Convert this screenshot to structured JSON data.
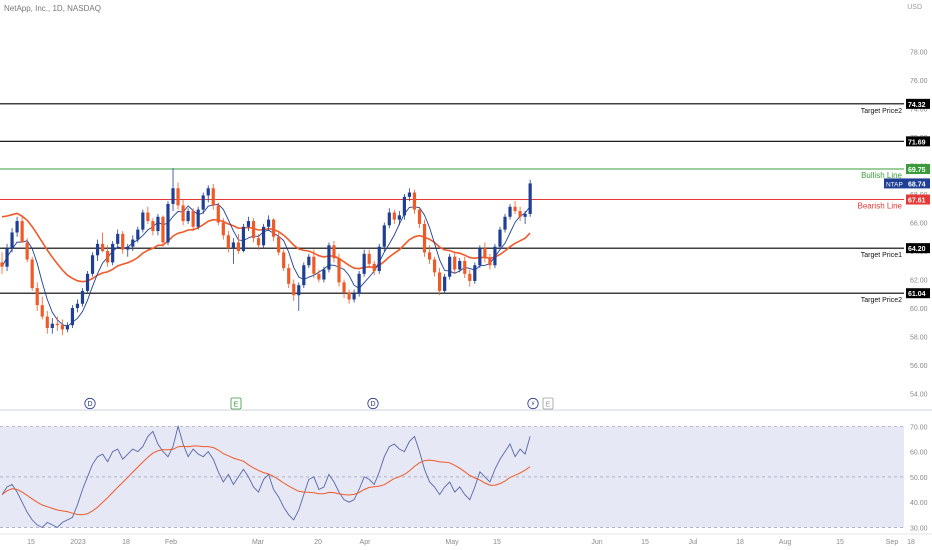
{
  "header": {
    "title": "NetApp, Inc., 1D, NASDAQ",
    "currency": "USD"
  },
  "colors": {
    "up": "#1e3f94",
    "down": "#f05a28",
    "ma_long": "#f05a28",
    "ma_short": "#1e3f94",
    "bullish": "#3a9b3a",
    "bearish": "#e53935",
    "level": "#000000",
    "rsi_line": "#5866a8",
    "rsi_ma": "#f05a28",
    "rsi_band": "#e6e8f5"
  },
  "chart_data": [
    {
      "type": "candlestick",
      "y_axis": {
        "ticks": [
          54,
          56,
          58,
          60,
          62,
          64,
          66,
          68,
          70,
          72,
          74,
          76,
          78
        ],
        "tick_labels": [
          "54.00",
          "56.00",
          "58.00",
          "60.00",
          "62.00",
          "64.00",
          "66.00",
          "68.00",
          "70.00",
          "72.00",
          "74.00",
          "76.00",
          "78.00"
        ],
        "range": [
          53.2,
          80.2
        ]
      },
      "x_axis": {
        "tick_labels": [
          "15",
          "2023",
          "18",
          "Feb",
          "Mar",
          "20",
          "Apr",
          "May",
          "15",
          "Jun",
          "15",
          "Jul",
          "18",
          "Aug",
          "15",
          "Sep",
          "18"
        ]
      },
      "levels": [
        {
          "name": "Target Price2",
          "value": 74.32,
          "value_label": "74.32",
          "kind": "level"
        },
        {
          "name": "",
          "value": 71.69,
          "value_label": "71.69",
          "kind": "level"
        },
        {
          "name": "Bullish Line",
          "value": 69.75,
          "value_label": "69.75",
          "kind": "bullish"
        },
        {
          "name": "Bearish Line",
          "value": 67.61,
          "value_label": "67.61",
          "kind": "bearish"
        },
        {
          "name": "Target Price1",
          "value": 64.2,
          "value_label": "64.20",
          "kind": "level"
        },
        {
          "name": "Target Price2",
          "value": 61.04,
          "value_label": "61.04",
          "kind": "level"
        }
      ],
      "last_price": {
        "symbol": "NTAP",
        "value": 68.74,
        "value_label": "68.74"
      },
      "events": [
        "D",
        "E",
        "D",
        "⚡",
        "E"
      ],
      "candles": [
        [
          63.2,
          63.9,
          62.4,
          62.9
        ],
        [
          62.9,
          64.5,
          62.6,
          64.2
        ],
        [
          64.2,
          65.6,
          63.9,
          65.3
        ],
        [
          65.3,
          66.4,
          65.0,
          66.1
        ],
        [
          66.1,
          66.5,
          64.8,
          64.6
        ],
        [
          64.6,
          64.9,
          63.2,
          63.4
        ],
        [
          63.4,
          63.6,
          61.2,
          61.4
        ],
        [
          61.4,
          61.8,
          59.8,
          60.2
        ],
        [
          60.2,
          60.8,
          59.2,
          59.4
        ],
        [
          59.4,
          59.8,
          58.2,
          58.6
        ],
        [
          58.6,
          59.3,
          58.2,
          58.9
        ],
        [
          58.9,
          59.4,
          58.4,
          58.8
        ],
        [
          58.8,
          59.2,
          58.1,
          58.5
        ],
        [
          58.5,
          59.0,
          58.3,
          58.8
        ],
        [
          58.8,
          60.2,
          58.6,
          60.0
        ],
        [
          60.0,
          60.6,
          59.7,
          60.3
        ],
        [
          60.3,
          61.4,
          60.1,
          61.2
        ],
        [
          61.2,
          62.6,
          61.0,
          62.4
        ],
        [
          62.4,
          63.9,
          62.2,
          63.7
        ],
        [
          63.7,
          64.8,
          63.3,
          64.5
        ],
        [
          64.5,
          65.3,
          63.9,
          64.0
        ],
        [
          64.0,
          64.4,
          62.9,
          63.2
        ],
        [
          63.2,
          64.7,
          63.0,
          64.5
        ],
        [
          64.5,
          65.5,
          64.2,
          65.2
        ],
        [
          65.2,
          65.4,
          63.8,
          64.1
        ],
        [
          64.1,
          64.5,
          63.6,
          64.3
        ],
        [
          64.3,
          65.1,
          64.0,
          64.8
        ],
        [
          64.8,
          65.7,
          64.6,
          65.5
        ],
        [
          65.5,
          66.9,
          65.3,
          66.7
        ],
        [
          66.7,
          67.1,
          65.9,
          66.1
        ],
        [
          66.1,
          66.3,
          65.1,
          65.4
        ],
        [
          65.4,
          66.6,
          65.1,
          66.4
        ],
        [
          66.4,
          66.5,
          64.3,
          64.6
        ],
        [
          64.6,
          67.5,
          64.4,
          67.3
        ],
        [
          67.3,
          69.8,
          66.8,
          68.4
        ],
        [
          68.4,
          68.8,
          66.9,
          67.2
        ],
        [
          67.2,
          67.6,
          65.8,
          66.1
        ],
        [
          66.1,
          67.0,
          65.9,
          66.8
        ],
        [
          66.8,
          67.0,
          65.4,
          65.7
        ],
        [
          65.7,
          67.1,
          65.5,
          66.9
        ],
        [
          66.9,
          68.1,
          66.6,
          67.9
        ],
        [
          67.9,
          68.6,
          67.4,
          68.4
        ],
        [
          68.4,
          68.7,
          66.9,
          67.2
        ],
        [
          67.2,
          67.4,
          65.8,
          66.0
        ],
        [
          66.0,
          66.3,
          64.8,
          65.1
        ],
        [
          65.1,
          65.4,
          63.9,
          64.2
        ],
        [
          64.2,
          64.9,
          63.1,
          64.6
        ],
        [
          64.6,
          65.2,
          63.8,
          64.0
        ],
        [
          64.0,
          65.9,
          63.9,
          65.7
        ],
        [
          65.7,
          66.4,
          65.4,
          66.1
        ],
        [
          66.1,
          66.3,
          64.6,
          64.9
        ],
        [
          64.9,
          65.2,
          64.1,
          64.4
        ],
        [
          64.4,
          65.9,
          64.2,
          65.7
        ],
        [
          65.7,
          66.5,
          65.4,
          66.2
        ],
        [
          66.2,
          66.3,
          64.7,
          65.0
        ],
        [
          65.0,
          65.3,
          63.7,
          63.9
        ],
        [
          63.9,
          64.1,
          62.6,
          62.8
        ],
        [
          62.8,
          63.1,
          61.4,
          61.7
        ],
        [
          61.7,
          62.0,
          60.5,
          60.9
        ],
        [
          60.9,
          61.8,
          59.8,
          61.6
        ],
        [
          61.6,
          63.2,
          61.4,
          63.0
        ],
        [
          63.0,
          63.8,
          62.8,
          63.6
        ],
        [
          63.6,
          64.1,
          62.1,
          62.4
        ],
        [
          62.4,
          62.7,
          61.8,
          62.0
        ],
        [
          62.0,
          62.9,
          61.8,
          62.7
        ],
        [
          62.7,
          64.6,
          62.5,
          64.4
        ],
        [
          64.4,
          64.7,
          63.2,
          63.5
        ],
        [
          63.5,
          63.8,
          61.5,
          61.8
        ],
        [
          61.8,
          62.0,
          60.7,
          61.1
        ],
        [
          61.1,
          61.3,
          60.3,
          60.6
        ],
        [
          60.6,
          61.3,
          60.4,
          61.0
        ],
        [
          61.0,
          62.6,
          60.8,
          62.4
        ],
        [
          62.4,
          64.1,
          62.2,
          63.8
        ],
        [
          63.8,
          64.1,
          62.9,
          63.1
        ],
        [
          63.1,
          63.3,
          62.3,
          62.6
        ],
        [
          62.6,
          64.5,
          62.4,
          64.3
        ],
        [
          64.3,
          66.0,
          64.0,
          65.8
        ],
        [
          65.8,
          67.0,
          65.6,
          66.7
        ],
        [
          66.7,
          66.9,
          65.9,
          66.2
        ],
        [
          66.2,
          66.8,
          65.8,
          66.5
        ],
        [
          66.5,
          68.0,
          66.2,
          67.8
        ],
        [
          67.8,
          68.4,
          67.5,
          68.1
        ],
        [
          68.1,
          68.3,
          66.6,
          66.9
        ],
        [
          66.9,
          67.0,
          65.6,
          65.9
        ],
        [
          65.9,
          66.2,
          63.6,
          63.9
        ],
        [
          63.9,
          64.4,
          63.1,
          63.4
        ],
        [
          63.4,
          63.6,
          62.2,
          62.5
        ],
        [
          62.5,
          62.8,
          60.9,
          61.2
        ],
        [
          61.2,
          62.4,
          61.0,
          62.2
        ],
        [
          62.2,
          63.8,
          62.0,
          63.6
        ],
        [
          63.6,
          63.9,
          62.4,
          62.7
        ],
        [
          62.7,
          63.5,
          62.5,
          63.3
        ],
        [
          63.3,
          63.6,
          62.1,
          62.4
        ],
        [
          62.4,
          62.7,
          61.5,
          61.9
        ],
        [
          61.9,
          63.2,
          61.7,
          63.0
        ],
        [
          63.0,
          64.4,
          62.8,
          64.2
        ],
        [
          64.2,
          64.6,
          63.2,
          63.5
        ],
        [
          63.5,
          63.8,
          62.7,
          63.0
        ],
        [
          63.0,
          64.5,
          62.8,
          64.3
        ],
        [
          64.3,
          65.7,
          64.1,
          65.5
        ],
        [
          65.5,
          66.6,
          65.3,
          66.4
        ],
        [
          66.4,
          67.3,
          66.2,
          67.1
        ],
        [
          67.1,
          67.5,
          66.6,
          66.8
        ],
        [
          66.8,
          67.1,
          66.1,
          66.4
        ],
        [
          66.4,
          66.8,
          65.9,
          66.6
        ],
        [
          66.6,
          69.0,
          66.4,
          68.74
        ]
      ]
    },
    {
      "type": "line",
      "name": "RSI",
      "y_axis": {
        "ticks": [
          30,
          40,
          50,
          60,
          70
        ],
        "tick_labels": [
          "30.00",
          "40.00",
          "50.00",
          "60.00",
          "70.00"
        ],
        "range": [
          29,
          72.5
        ]
      },
      "band": [
        30,
        70
      ],
      "values": [
        43,
        46,
        47,
        44,
        40,
        36,
        33,
        31,
        30,
        32,
        31,
        30,
        32,
        33,
        34,
        39,
        45,
        50,
        55,
        58,
        59,
        56,
        60,
        61,
        57,
        59,
        61,
        60,
        62,
        66,
        68,
        63,
        60,
        58,
        62,
        70,
        63,
        58,
        61,
        59,
        58,
        60,
        57,
        52,
        48,
        51,
        47,
        50,
        53,
        50,
        46,
        44,
        49,
        51,
        45,
        42,
        38,
        35,
        33,
        37,
        43,
        49,
        50,
        45,
        46,
        51,
        48,
        44,
        41,
        40,
        41,
        45,
        50,
        49,
        47,
        52,
        58,
        62,
        63,
        61,
        60,
        64,
        66,
        60,
        53,
        48,
        46,
        43,
        46,
        48,
        44,
        46,
        43,
        41,
        46,
        52,
        50,
        48,
        53,
        57,
        60,
        63,
        58,
        61,
        59,
        66
      ]
    }
  ]
}
